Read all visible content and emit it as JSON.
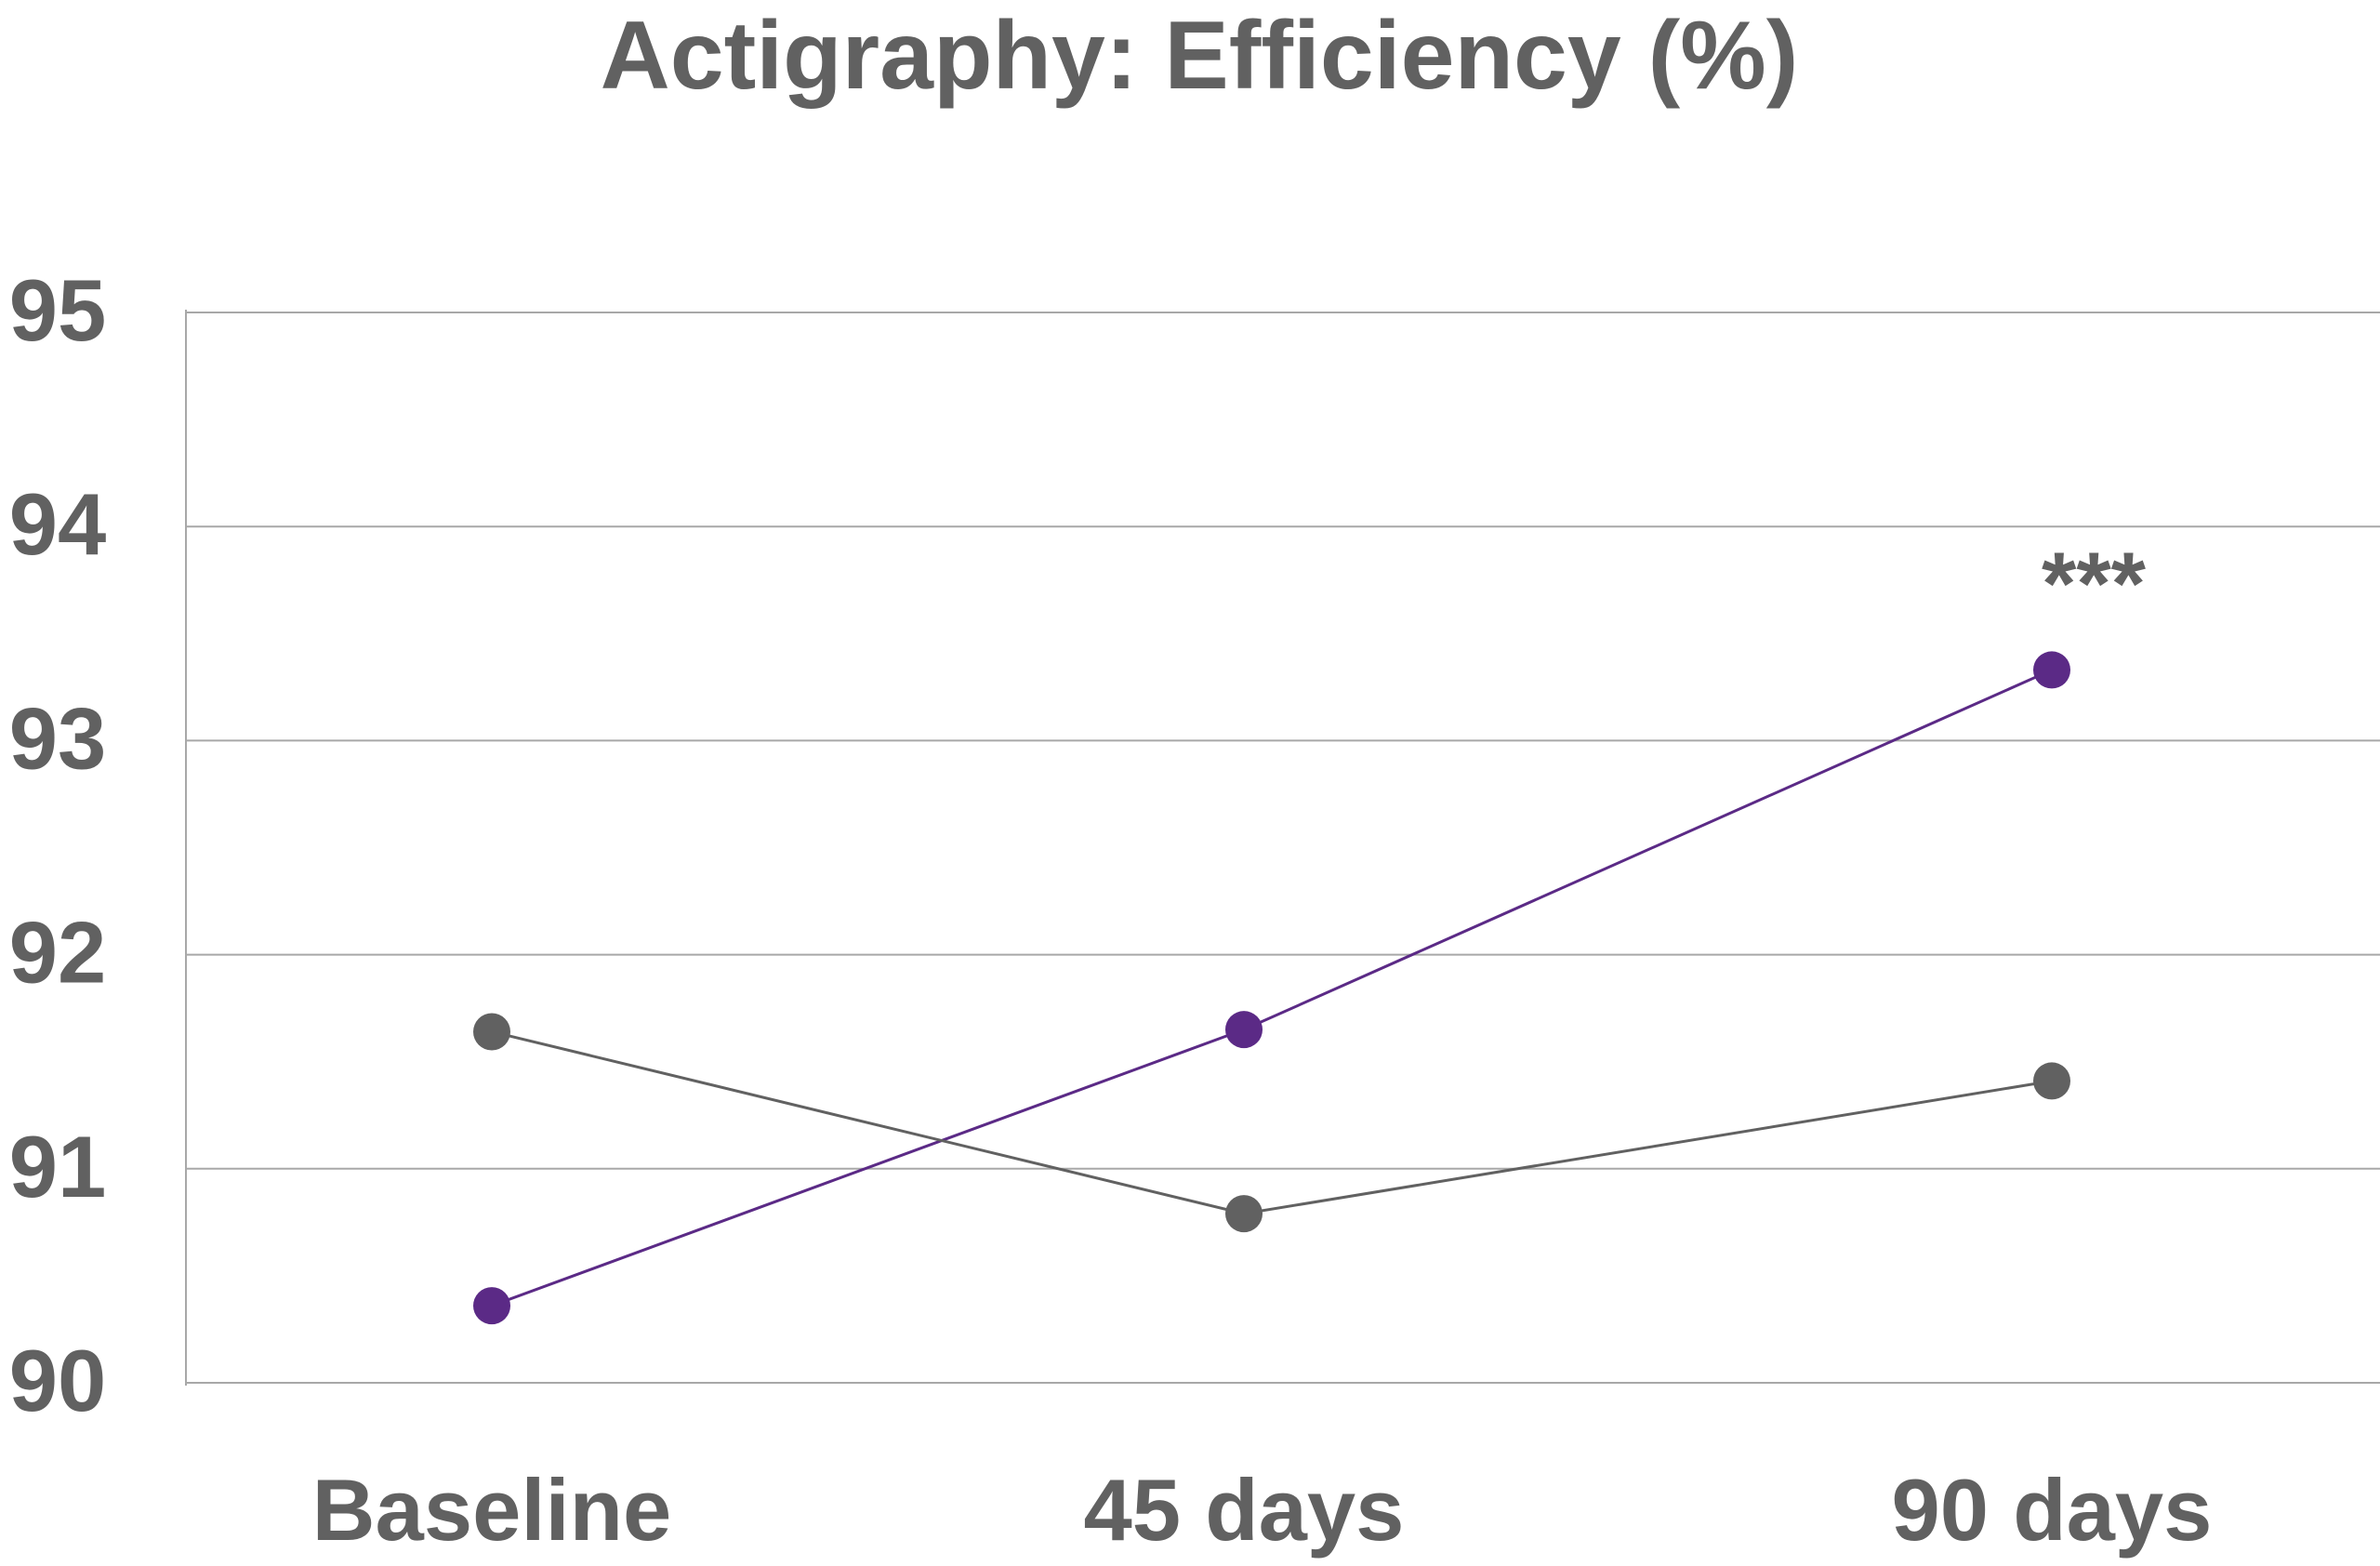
{
  "chart_data": {
    "type": "line",
    "title": "Actigraphy: Efficiency (%)",
    "xlabel": "",
    "ylabel": "",
    "categories": [
      "Baseline",
      "45 days",
      "90 days"
    ],
    "ylim": [
      90,
      95
    ],
    "yticks": [
      "90",
      "91",
      "92",
      "93",
      "94",
      "95"
    ],
    "grid": true,
    "legend": "none",
    "series": [
      {
        "color": "#5b2a86",
        "values": [
          90.36,
          91.65,
          93.33
        ]
      },
      {
        "color": "#616161",
        "values": [
          91.64,
          90.79,
          91.41
        ]
      }
    ],
    "annotations": [
      {
        "text": "***",
        "category": "90 days",
        "value": 93.33
      }
    ]
  }
}
